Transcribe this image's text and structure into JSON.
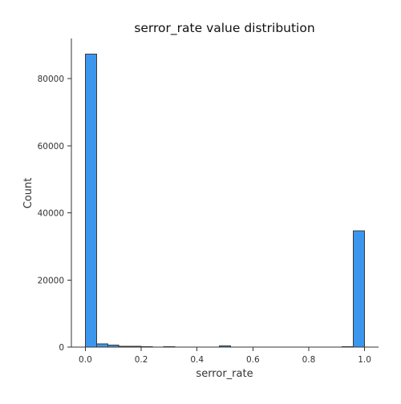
{
  "chart_data": {
    "type": "bar",
    "title": "serror_rate value distribution",
    "xlabel": "serror_rate",
    "ylabel": "Count",
    "xlim": [
      -0.05,
      1.05
    ],
    "ylim": [
      0,
      92000
    ],
    "xticks": [
      0.0,
      0.2,
      0.4,
      0.6,
      0.8,
      1.0
    ],
    "xtick_labels": [
      "0.0",
      "0.2",
      "0.4",
      "0.6",
      "0.8",
      "1.0"
    ],
    "yticks": [
      0,
      20000,
      40000,
      60000,
      80000
    ],
    "ytick_labels": [
      "0",
      "20000",
      "40000",
      "60000",
      "80000"
    ],
    "bin_edges": [
      0.0,
      0.04,
      0.08,
      0.12,
      0.16,
      0.2,
      0.24,
      0.28,
      0.32,
      0.36,
      0.4,
      0.44,
      0.48,
      0.52,
      0.56,
      0.6,
      0.64,
      0.68,
      0.72,
      0.76,
      0.8,
      0.84,
      0.88,
      0.92,
      0.96,
      1.0
    ],
    "values": [
      87300,
      900,
      600,
      250,
      200,
      150,
      0,
      150,
      0,
      0,
      0,
      0,
      350,
      0,
      0,
      0,
      0,
      0,
      0,
      0,
      0,
      0,
      0,
      150,
      34700
    ],
    "bar_color": "#3b97ee",
    "edge_color": "#3a3a3a",
    "grid": false,
    "legend": false
  }
}
